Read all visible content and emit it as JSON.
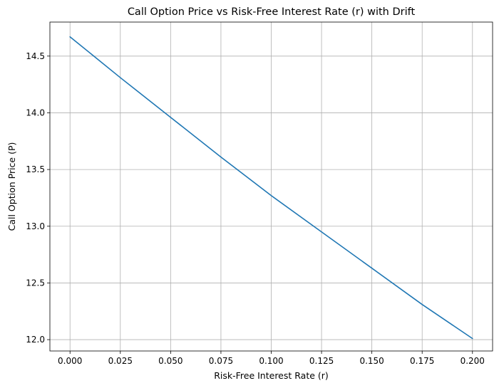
{
  "chart_data": {
    "type": "line",
    "title": "Call Option Price vs Risk-Free Interest Rate (r) with Drift",
    "xlabel": "Risk-Free Interest Rate (r)",
    "ylabel": "Call Option Price (P)",
    "xlim": [
      -0.01,
      0.21
    ],
    "ylim": [
      11.9,
      14.8
    ],
    "xticks": [
      "0.000",
      "0.025",
      "0.050",
      "0.075",
      "0.100",
      "0.125",
      "0.150",
      "0.175",
      "0.200"
    ],
    "xtick_values": [
      0,
      0.025,
      0.05,
      0.075,
      0.1,
      0.125,
      0.15,
      0.175,
      0.2
    ],
    "yticks": [
      "12.0",
      "12.5",
      "13.0",
      "13.5",
      "14.0",
      "14.5"
    ],
    "ytick_values": [
      12.0,
      12.5,
      13.0,
      13.5,
      14.0,
      14.5
    ],
    "grid": true,
    "series": [
      {
        "color": "#1f77b4",
        "x": [
          0.0,
          0.025,
          0.05,
          0.075,
          0.1,
          0.125,
          0.15,
          0.175,
          0.2
        ],
        "y": [
          14.67,
          14.31,
          13.96,
          13.61,
          13.27,
          12.95,
          12.63,
          12.31,
          12.01
        ]
      }
    ]
  }
}
